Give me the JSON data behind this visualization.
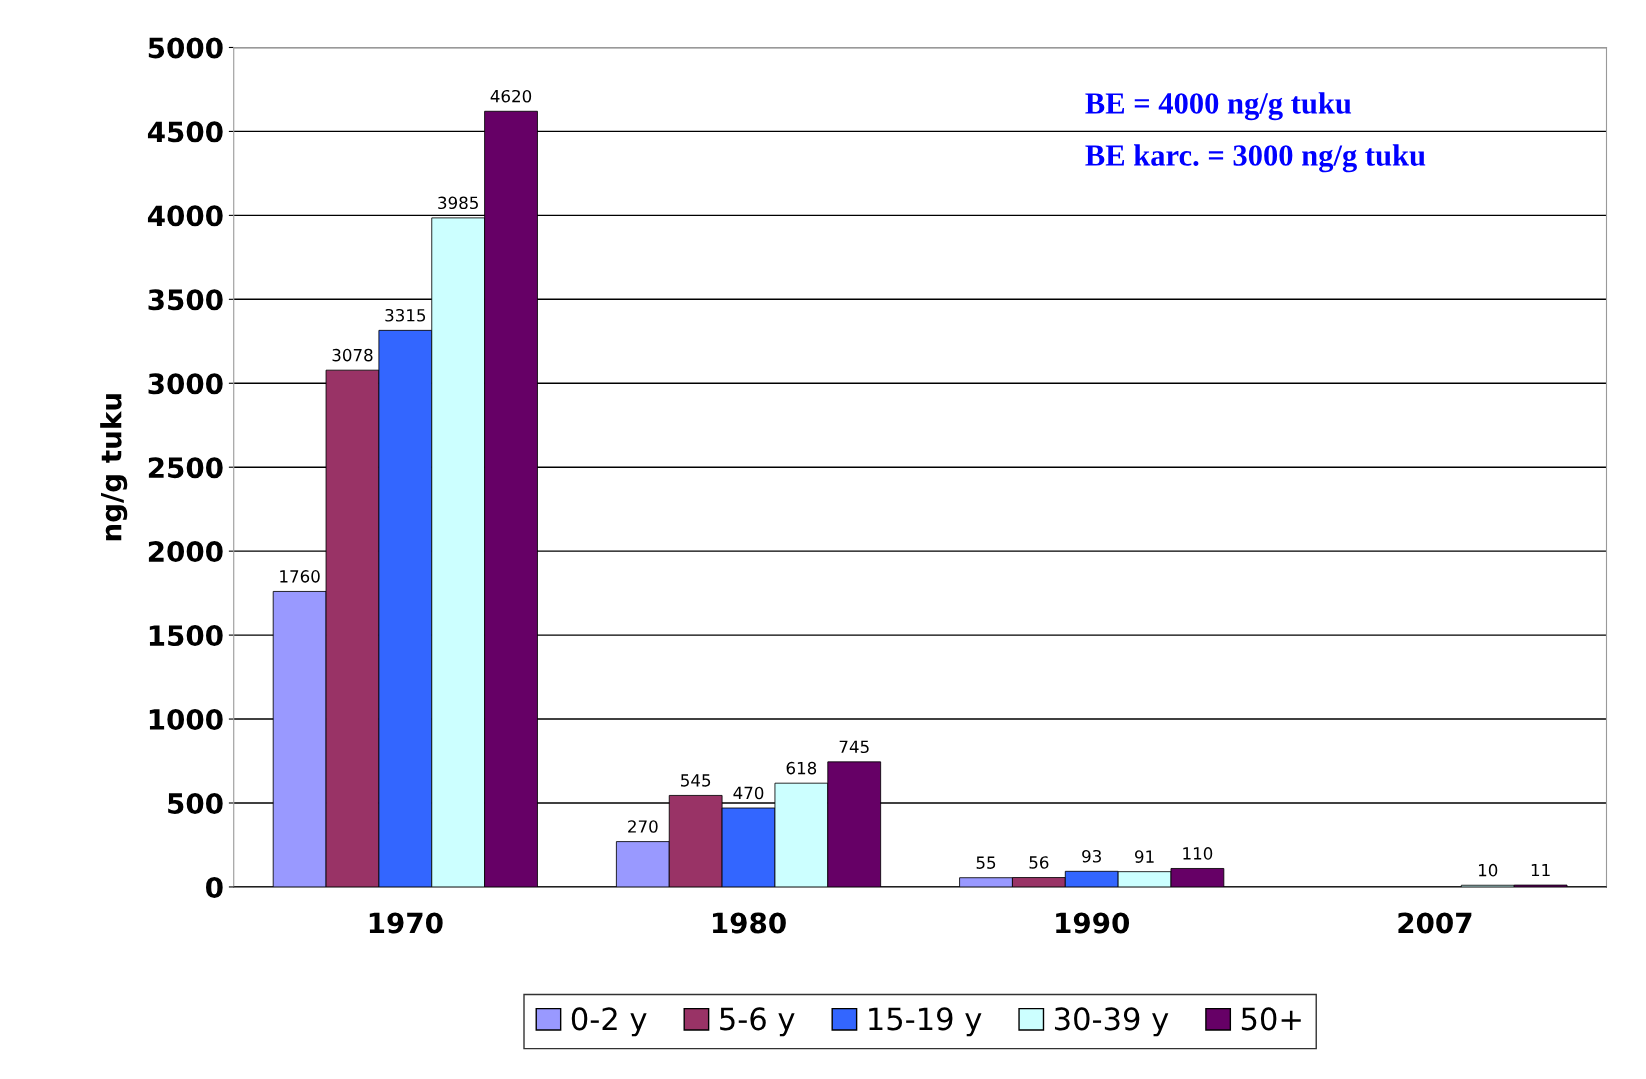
{
  "chart_data": {
    "type": "bar",
    "ylabel": "ng/g tuku",
    "categories": [
      "1970",
      "1980",
      "1990",
      "2007"
    ],
    "series": [
      {
        "name": "0-2 y",
        "color": "#9999ff",
        "values": [
          1760,
          270,
          55,
          null
        ]
      },
      {
        "name": "5-6 y",
        "color": "#993366",
        "values": [
          3078,
          545,
          56,
          null
        ]
      },
      {
        "name": "15-19 y",
        "color": "#3366ff",
        "values": [
          3315,
          470,
          93,
          null
        ]
      },
      {
        "name": "30-39 y",
        "color": "#ccffff",
        "values": [
          3985,
          618,
          91,
          10
        ]
      },
      {
        "name": "50+",
        "color": "#660066",
        "values": [
          4620,
          745,
          110,
          11
        ]
      }
    ],
    "ylim": [
      0,
      5000
    ],
    "yticks": [
      0,
      500,
      1000,
      1500,
      2000,
      2500,
      3000,
      3500,
      4000,
      4500,
      5000
    ],
    "grid": "y",
    "legend": "bottom",
    "data_labels": true,
    "annotations": [
      "BE = 4000 ng/g tuku",
      "BE karc. = 3000 ng/g tuku"
    ]
  }
}
